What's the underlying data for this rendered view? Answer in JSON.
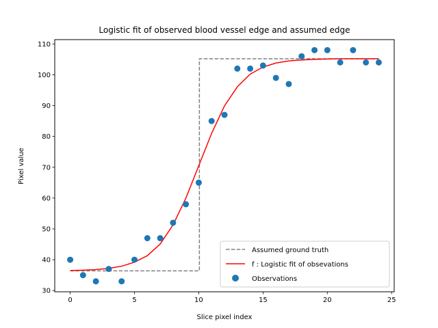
{
  "chart_data": {
    "type": "line",
    "title": "Logistic fit of observed blood vessel edge and assumed edge",
    "xlabel": "Slice pixel index",
    "ylabel": "Pixel value",
    "xlim": [
      -1.2,
      25.2
    ],
    "ylim": [
      29.6,
      111.4
    ],
    "xticks": [
      0,
      5,
      10,
      15,
      20,
      25
    ],
    "yticks": [
      30,
      40,
      50,
      60,
      70,
      80,
      90,
      100,
      110
    ],
    "grid": false,
    "legend_position": "lower-right",
    "series": [
      {
        "name": "Assumed ground truth",
        "kind": "line",
        "style": "dashed",
        "color": "#808080",
        "x": [
          0,
          10.05,
          10.05,
          24
        ],
        "y": [
          36.4,
          36.4,
          105.2,
          105.2
        ]
      },
      {
        "name": "f : Logistic fit of obsevations",
        "kind": "line",
        "style": "solid",
        "color": "#ff0000",
        "x": [
          0,
          1,
          2,
          3,
          4,
          5,
          6,
          7,
          8,
          9,
          10,
          11,
          12,
          13,
          14,
          15,
          16,
          17,
          18,
          19,
          20,
          21,
          22,
          23,
          24
        ],
        "y": [
          36.5,
          36.6,
          36.8,
          37.2,
          37.9,
          39.2,
          41.3,
          45.1,
          51.3,
          60.0,
          70.5,
          81.0,
          89.9,
          96.1,
          100.2,
          102.5,
          103.8,
          104.5,
          104.8,
          105.0,
          105.1,
          105.2,
          105.2,
          105.2,
          105.2
        ]
      },
      {
        "name": "Observations",
        "kind": "scatter",
        "color": "#1f77b4",
        "x": [
          0,
          1,
          2,
          3,
          4,
          5,
          6,
          7,
          8,
          9,
          10,
          11,
          12,
          13,
          14,
          15,
          16,
          17,
          18,
          19,
          20,
          21,
          22,
          23,
          24
        ],
        "y": [
          40,
          35,
          33,
          37,
          33,
          40,
          47,
          47,
          52,
          58,
          65,
          85,
          87,
          102,
          102,
          103,
          99,
          97,
          106,
          108,
          108,
          104,
          108,
          104,
          104
        ]
      }
    ]
  }
}
